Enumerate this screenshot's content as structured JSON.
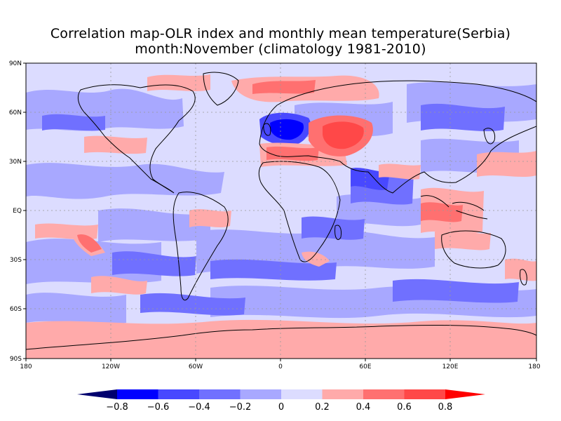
{
  "title": {
    "line1": "Correlation map-OLR index and monthly mean temperature(Serbia)",
    "line2": "month:November (climatology 1981-2010)"
  },
  "map": {
    "lat_ticks": [
      "90N",
      "60N",
      "30N",
      "EQ",
      "30S",
      "60S",
      "90S"
    ],
    "lon_ticks": [
      "180",
      "120W",
      "60W",
      "0",
      "60E",
      "120E",
      "180"
    ],
    "gridlines": "dashed"
  },
  "colorbar": {
    "labels": [
      "-0.8",
      "-0.6",
      "-0.4",
      "-0.2",
      "0",
      "0.2",
      "0.4",
      "0.6",
      "0.8"
    ],
    "colors": [
      "#00006e",
      "#0000ff",
      "#4848ff",
      "#7070ff",
      "#a8a8ff",
      "#dcdcff",
      "#ffaaaa",
      "#ff7070",
      "#ff4848",
      "#ff0000"
    ]
  },
  "colors": {
    "ocean_base": "#dcdcff",
    "land_outline": "#000000"
  }
}
